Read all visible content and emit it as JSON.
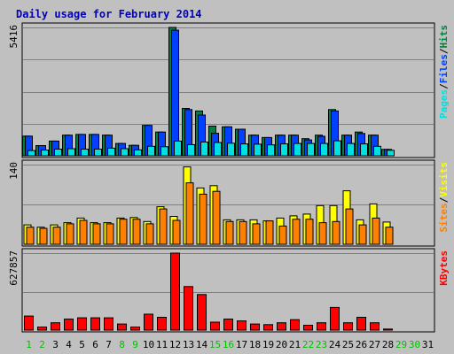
{
  "chart_data": {
    "type": "bar",
    "title": "Daily usage for February 2014",
    "categories": [
      "1",
      "2",
      "3",
      "4",
      "5",
      "6",
      "7",
      "8",
      "9",
      "10",
      "11",
      "12",
      "13",
      "14",
      "15",
      "16",
      "17",
      "18",
      "19",
      "20",
      "21",
      "22",
      "23",
      "24",
      "25",
      "26",
      "27",
      "28",
      "29",
      "30",
      "31"
    ],
    "weekend_days": [
      1,
      2,
      8,
      9,
      15,
      16,
      22,
      23,
      29,
      30
    ],
    "panels": [
      {
        "max_label": "5416",
        "ymax": 5416,
        "legend": [
          {
            "text": "Pages",
            "color": "#00e0e0"
          },
          {
            "text": "/",
            "color": "#000000"
          },
          {
            "text": "Files",
            "color": "#0040ff"
          },
          {
            "text": "/",
            "color": "#000000"
          },
          {
            "text": "Hits",
            "color": "#008040"
          }
        ],
        "series": [
          {
            "name": "Hits",
            "color": "#008040",
            "values": [
              830,
              430,
              620,
              870,
              900,
              900,
              870,
              520,
              440,
              1280,
              1000,
              5416,
              2000,
              1890,
              1250,
              1220,
              1120,
              870,
              770,
              870,
              870,
              720,
              870,
              1950,
              870,
              1000,
              870,
              270
            ]
          },
          {
            "name": "Files",
            "color": "#0040ff",
            "values": [
              830,
              430,
              620,
              870,
              900,
              900,
              870,
              520,
              440,
              1280,
              1000,
              5300,
              1950,
              1720,
              950,
              1220,
              1120,
              870,
              770,
              870,
              870,
              670,
              820,
              1890,
              870,
              940,
              870,
              270
            ]
          },
          {
            "name": "Pages",
            "color": "#00e0e0",
            "values": [
              220,
              240,
              280,
              300,
              280,
              280,
              320,
              300,
              250,
              400,
              380,
              620,
              470,
              580,
              560,
              530,
              500,
              490,
              460,
              500,
              520,
              520,
              520,
              630,
              520,
              500,
              400,
              230
            ]
          }
        ]
      },
      {
        "max_label": "140",
        "ymax": 140,
        "legend": [
          {
            "text": "Sites",
            "color": "#ff8000"
          },
          {
            "text": "/",
            "color": "#000000"
          },
          {
            "text": "Visits",
            "color": "#ffff00"
          }
        ],
        "series": [
          {
            "name": "Visits",
            "color": "#ffff00",
            "values": [
              34,
              30,
              34,
              38,
              46,
              38,
              38,
              46,
              47,
              40,
              66,
              49,
              136,
              99,
              103,
              43,
              43,
              43,
              41,
              46,
              50,
              53,
              68,
              68,
              94,
              43,
              71,
              39
            ]
          },
          {
            "name": "Sites",
            "color": "#ff8000",
            "values": [
              30,
              28,
              30,
              36,
              42,
              36,
              36,
              44,
              44,
              36,
              62,
              42,
              108,
              88,
              93,
              40,
              40,
              36,
              41,
              32,
              44,
              44,
              38,
              40,
              62,
              34,
              46,
              30
            ]
          }
        ]
      },
      {
        "max_label": "627857",
        "ymax": 627857,
        "legend": [
          {
            "text": "KBytes",
            "color": "#ff0000"
          }
        ],
        "series": [
          {
            "name": "KBytes",
            "color": "#ff0000",
            "values": [
              115000,
              25000,
              60000,
              90000,
              100000,
              100000,
              100000,
              50000,
              25000,
              130000,
              105000,
              627857,
              355000,
              290000,
              65000,
              90000,
              75000,
              50000,
              45000,
              60000,
              85000,
              40000,
              60000,
              185000,
              60000,
              105000,
              60000,
              9000
            ]
          }
        ]
      }
    ],
    "colors": {
      "weekday_label": "#008000",
      "weekend_label": "#00c000",
      "title": "#0000c0",
      "grid": "#808080"
    }
  }
}
